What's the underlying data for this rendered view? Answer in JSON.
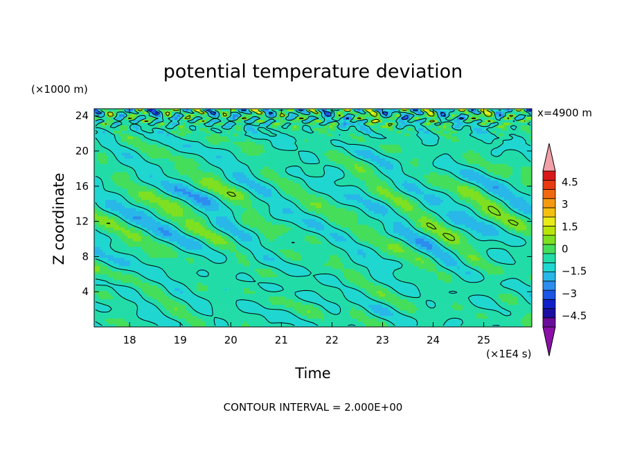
{
  "chart_data": {
    "type": "heatmap",
    "title": "potential temperature deviation",
    "xlabel": "Time",
    "ylabel": "Z coordinate",
    "x_scale_label": "(×1E4 s)",
    "y_scale_label": "(×1000 m)",
    "annotation": "x=4900 m",
    "footer": "CONTOUR INTERVAL = 2.000E+00",
    "xlim": [
      17.3,
      25.95
    ],
    "ylim": [
      0,
      24.8
    ],
    "xticks": [
      18,
      19,
      20,
      21,
      22,
      23,
      24,
      25
    ],
    "yticks": [
      4,
      8,
      12,
      16,
      20,
      24
    ],
    "colorbar": {
      "labels": [
        "4.5",
        "3",
        "1.5",
        "0",
        "−1.5",
        "−3",
        "−4.5"
      ],
      "label_values": [
        4.5,
        3,
        1.5,
        0,
        -1.5,
        -3,
        -4.5
      ],
      "range": [
        -5.25,
        5.25
      ],
      "step": 0.75,
      "colors": [
        "#6a0d9a",
        "#1a0fa0",
        "#1020c8",
        "#1a55e6",
        "#2d8cf0",
        "#28b7e8",
        "#1fd7d0",
        "#22dca8",
        "#45de5a",
        "#7ee020",
        "#b8e40a",
        "#e8ea1a",
        "#f5c010",
        "#f59a10",
        "#f06810",
        "#e83a10",
        "#d81818"
      ],
      "over_color": "#f2a0a8",
      "under_color": "#8a10a8"
    },
    "field_summary": "Small-amplitude perturbations (about -1 to +1.5) fill the domain; coherent diagonal wave bands slope downward with time between 8 and 22 km; the strongest positive and negative anomalies (up to about +/-4.5) appear near the top boundary at 22-24 km."
  }
}
